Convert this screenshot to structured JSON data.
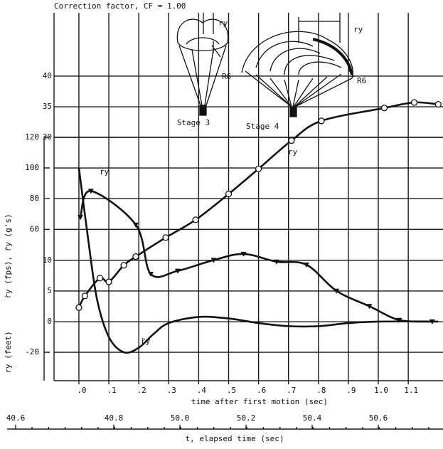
{
  "chart_data": {
    "type": "line",
    "title": "Correction factor, CF = 1.00",
    "xlabel": "time after first motion (sec)",
    "ylabel": "ry (feet)",
    "y2label": "ṙy (fps), r̈y (g's)",
    "xlim": [
      -0.083,
      1.216
    ],
    "xticks": [
      {
        "value": 0,
        "label": ".0"
      },
      {
        "value": 0.1,
        "label": ".1"
      },
      {
        "value": 0.2,
        "label": ".2"
      },
      {
        "value": 0.3,
        "label": ".3"
      },
      {
        "value": 0.4,
        "label": ".4"
      },
      {
        "value": 0.5,
        "label": ".5"
      },
      {
        "value": 0.6,
        "label": ".6"
      },
      {
        "value": 0.7,
        "label": ".7"
      },
      {
        "value": 0.8,
        "label": ".8"
      },
      {
        "value": 0.9,
        "label": ".9"
      },
      {
        "value": 1,
        "label": "1.0"
      },
      1.1
    ],
    "ylim": [
      -9.6,
      50.3
    ],
    "yticks": [
      0,
      5,
      10,
      30,
      35,
      40
    ],
    "y2lim": [
      -38.5,
      201
    ],
    "y2ticks": [
      -20,
      60,
      80,
      100,
      120
    ],
    "grid": true,
    "color": "#111111",
    "series": [
      {
        "name": "ry",
        "marker": "circle",
        "x": [
          0.0,
          0.02,
          0.07,
          0.1,
          0.15,
          0.19,
          0.29,
          0.39,
          0.5,
          0.6,
          0.71,
          0.81,
          1.02,
          1.12,
          1.2
        ],
        "values": [
          2.3,
          4.2,
          7.1,
          6.5,
          9.2,
          10.6,
          13.7,
          16.6,
          20.8,
          24.9,
          29.5,
          32.7,
          34.8,
          35.7,
          35.4
        ]
      },
      {
        "name": "ṙy",
        "marker": "triangle",
        "axis": "y2",
        "x": [
          0.005,
          0.04,
          0.19,
          0.24,
          0.33,
          0.45,
          0.55,
          0.66,
          0.76,
          0.86,
          0.97,
          1.07,
          1.18
        ],
        "values": [
          68,
          85,
          63,
          31,
          33,
          40,
          44,
          39,
          37,
          20,
          10,
          1,
          0
        ]
      },
      {
        "name": "r̈y",
        "marker": "none",
        "axis": "y2",
        "x": [
          0,
          0.03,
          0.06,
          0.1,
          0.15,
          0.2,
          0.25,
          0.3,
          0.4,
          0.5,
          0.6,
          0.7,
          0.8,
          0.9,
          1.0,
          1.2
        ],
        "values": [
          100,
          55,
          15,
          -10,
          -20,
          -17,
          -8,
          -1,
          3,
          2,
          -1,
          -3,
          -3,
          -1,
          0,
          0
        ]
      }
    ],
    "secondary_xaxis": {
      "label": "t, elapsed time (sec)",
      "ticks": [
        "40.6",
        "40.8",
        "50.0",
        "50.2",
        "50.4",
        "50.6"
      ]
    },
    "illustration": {
      "labels": [
        "ry",
        "R6",
        "Stage 3",
        "Stage 4",
        "ry",
        "R6"
      ]
    }
  }
}
